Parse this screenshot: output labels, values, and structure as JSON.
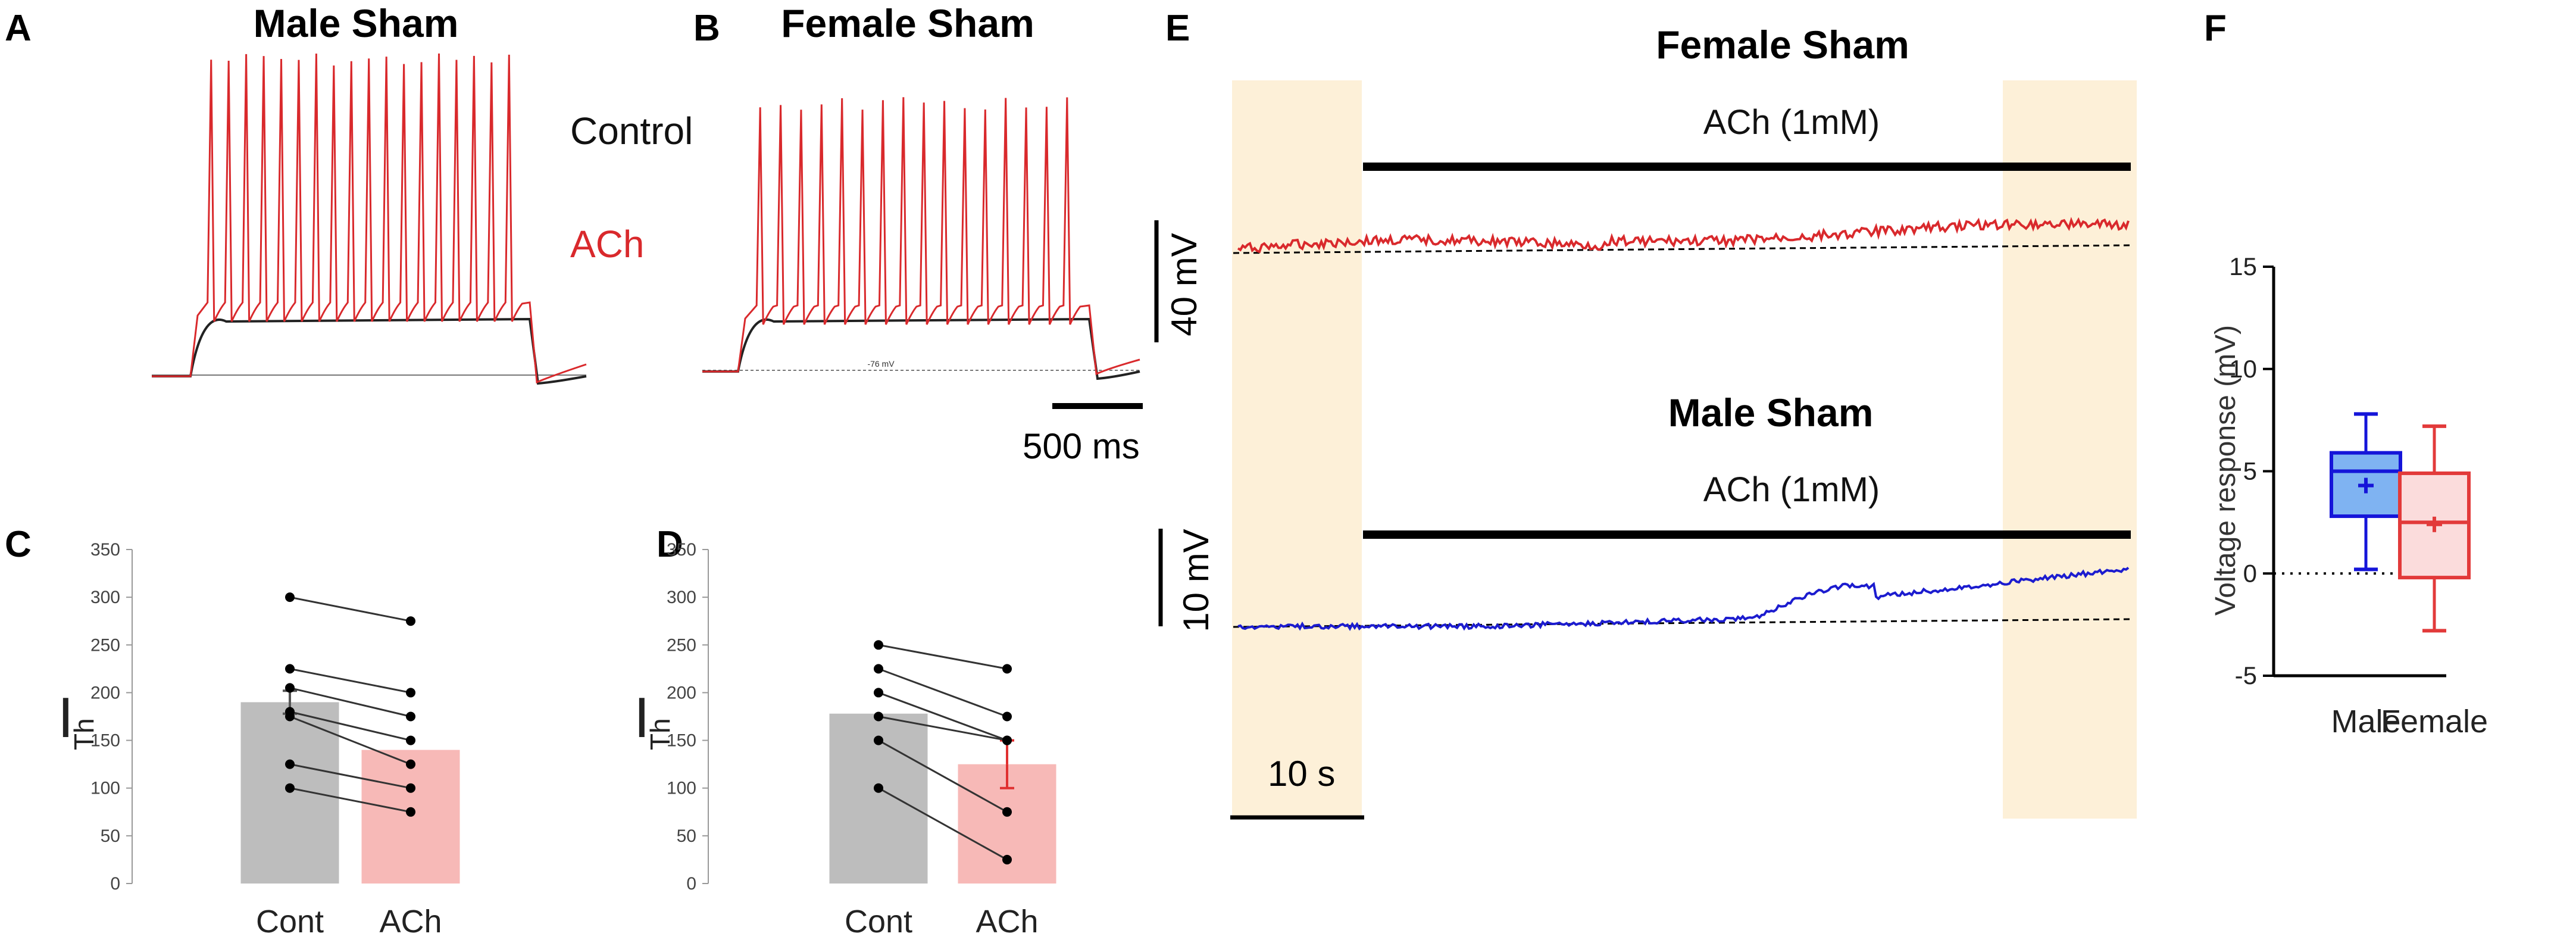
{
  "panel_letters": [
    "A",
    "B",
    "C",
    "D",
    "E",
    "F"
  ],
  "colors": {
    "control": "#222222",
    "ach": "#d9292c",
    "bar_control": "#bdbdbd",
    "bar_ach": "#f7b9b7",
    "male_trace": "#1c1ccf",
    "female_trace": "#d9292c",
    "washout": "#fdf0d8",
    "box_male_fill": "#7fb3f2",
    "box_male_edge": "#1515d9",
    "box_female_fill": "#fbdcdc",
    "box_female_edge": "#e23a3a"
  },
  "panel_A": {
    "title": "Male Sham"
  },
  "panel_B": {
    "title": "Female Sham",
    "rmp_label": "-76 mV"
  },
  "legend": {
    "control": "Control",
    "ach": "ACh"
  },
  "scalebar_AB": {
    "label": "500 ms"
  },
  "panel_E": {
    "female_title": "Female Sham",
    "male_title": "Male Sham",
    "drug_label": "ACh (1mM)",
    "scale_40": "40 mV",
    "scale_10": "10 mV",
    "scale_time": "10 s"
  },
  "chart_data": [
    {
      "panel": "C",
      "type": "bar",
      "categories": [
        "Cont",
        "ACh"
      ],
      "values": [
        190,
        140
      ],
      "errors": [
        12,
        0
      ],
      "ylabel": "I",
      "ylabel_sub": "Th",
      "ylim": [
        0,
        350
      ],
      "yticks": [
        0,
        50,
        100,
        150,
        200,
        250,
        300,
        350
      ],
      "paired": [
        [
          300,
          275
        ],
        [
          225,
          200
        ],
        [
          205,
          175
        ],
        [
          180,
          150
        ],
        [
          175,
          125
        ],
        [
          125,
          100
        ],
        [
          100,
          75
        ]
      ]
    },
    {
      "panel": "D",
      "type": "bar",
      "categories": [
        "Cont",
        "ACh"
      ],
      "values": [
        178,
        125
      ],
      "errors": [
        0,
        25
      ],
      "ylabel": "I",
      "ylabel_sub": "Th",
      "ylim": [
        0,
        350
      ],
      "yticks": [
        0,
        50,
        100,
        150,
        200,
        250,
        300,
        350
      ],
      "paired": [
        [
          250,
          225
        ],
        [
          225,
          175
        ],
        [
          200,
          150
        ],
        [
          175,
          150
        ],
        [
          150,
          75
        ],
        [
          100,
          25
        ]
      ]
    },
    {
      "panel": "F",
      "type": "box",
      "categories": [
        "Male",
        "Female"
      ],
      "ylabel": "Voltage response (mV)",
      "ylim": [
        -5,
        15
      ],
      "yticks": [
        -5,
        0,
        5,
        10,
        15
      ],
      "reference_line": 0,
      "boxes": [
        {
          "name": "Male",
          "min": 0.2,
          "q1": 2.8,
          "median": 5.0,
          "q3": 5.9,
          "max": 7.8,
          "mean": 4.3
        },
        {
          "name": "Female",
          "min": -2.8,
          "q1": -0.2,
          "median": 2.5,
          "q3": 4.9,
          "max": 7.2,
          "mean": 2.4
        }
      ]
    }
  ]
}
